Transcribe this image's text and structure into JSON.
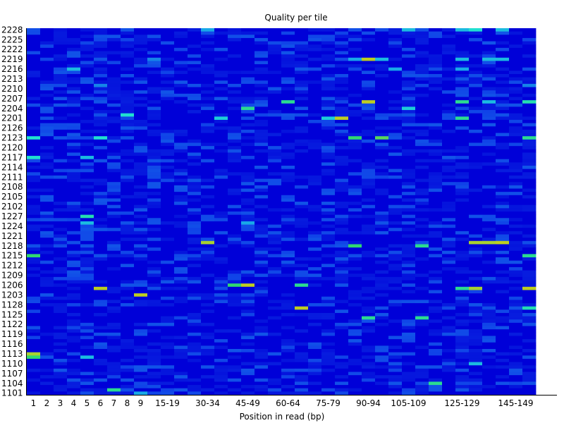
{
  "chart_data": {
    "type": "heatmap",
    "title": "Quality per tile",
    "xlabel": "Position in read (bp)",
    "ylabel": "",
    "x_tick_labels": [
      "1",
      "2",
      "3",
      "4",
      "5",
      "6",
      "7",
      "8",
      "9",
      "15-19",
      "30-34",
      "45-49",
      "60-64",
      "75-79",
      "90-94",
      "105-109",
      "125-129",
      "145-149"
    ],
    "y_tick_labels": [
      "2228",
      "2225",
      "2222",
      "2219",
      "2216",
      "2213",
      "2210",
      "2207",
      "2204",
      "2201",
      "2126",
      "2123",
      "2120",
      "2117",
      "2114",
      "2111",
      "2108",
      "2105",
      "2102",
      "1227",
      "1224",
      "1221",
      "1218",
      "1215",
      "1212",
      "1209",
      "1206",
      "1203",
      "1128",
      "1125",
      "1122",
      "1119",
      "1116",
      "1113",
      "1110",
      "1107",
      "1104",
      "1101"
    ],
    "rows": [
      "2228",
      "2227",
      "2226",
      "2225",
      "2224",
      "2223",
      "2222",
      "2221",
      "2220",
      "2219",
      "2218",
      "2217",
      "2216",
      "2215",
      "2214",
      "2213",
      "2212",
      "2211",
      "2210",
      "2209",
      "2208",
      "2207",
      "2206",
      "2205",
      "2204",
      "2203",
      "2202",
      "2201",
      "2128",
      "2127",
      "2126",
      "2125",
      "2124",
      "2123",
      "2122",
      "2121",
      "2120",
      "2119",
      "2118",
      "2117",
      "2116",
      "2115",
      "2114",
      "2113",
      "2112",
      "2111",
      "2110",
      "2109",
      "2108",
      "2107",
      "2106",
      "2105",
      "2104",
      "2103",
      "2102",
      "2101",
      "1228",
      "1227",
      "1226",
      "1225",
      "1224",
      "1223",
      "1222",
      "1221",
      "1220",
      "1219",
      "1218",
      "1217",
      "1216",
      "1215",
      "1214",
      "1213",
      "1212",
      "1211",
      "1210",
      "1209",
      "1208",
      "1207",
      "1206",
      "1205",
      "1204",
      "1203",
      "1202",
      "1201",
      "1128",
      "1127",
      "1126",
      "1125",
      "1124",
      "1123",
      "1122",
      "1121",
      "1120",
      "1119",
      "1118",
      "1117",
      "1116",
      "1115",
      "1114",
      "1113",
      "1112",
      "1111",
      "1110",
      "1109",
      "1108",
      "1107",
      "1106",
      "1105",
      "1104",
      "1103",
      "1102",
      "1101"
    ],
    "columns": [
      "1",
      "2",
      "3",
      "4",
      "5",
      "6",
      "7",
      "8",
      "9",
      "10-14",
      "15-19",
      "20-24",
      "25-29",
      "30-34",
      "35-39",
      "40-44",
      "45-49",
      "50-54",
      "55-59",
      "60-64",
      "65-69",
      "70-74",
      "75-79",
      "80-84",
      "85-89",
      "90-94",
      "95-99",
      "100-104",
      "105-109",
      "110-114",
      "115-119",
      "120-124",
      "125-129",
      "130-134",
      "135-139",
      "140-144",
      "145-149",
      "150"
    ],
    "value_scale": "0 = no deviation from average quality (dark blue); higher = larger deviation (cyan, green, yellow)",
    "highlights": [
      {
        "row": "2228",
        "column": "30-34",
        "value": 0.3
      },
      {
        "row": "2228",
        "column": "105-109",
        "value": 0.35
      },
      {
        "row": "2228",
        "column": "125-129",
        "value": 0.35
      },
      {
        "row": "2228",
        "column": "130-134",
        "value": 0.45
      },
      {
        "row": "2228",
        "column": "140-144",
        "value": 0.35
      },
      {
        "row": "2219",
        "column": "10-14",
        "value": 0.25
      },
      {
        "row": "2219",
        "column": "85-89",
        "value": 0.3
      },
      {
        "row": "2219",
        "column": "90-94",
        "value": 0.8
      },
      {
        "row": "2219",
        "column": "95-99",
        "value": 0.35
      },
      {
        "row": "2219",
        "column": "125-129",
        "value": 0.35
      },
      {
        "row": "2219",
        "column": "135-139",
        "value": 0.35
      },
      {
        "row": "2219",
        "column": "140-144",
        "value": 0.35
      },
      {
        "row": "2216",
        "column": "4",
        "value": 0.35
      },
      {
        "row": "2216",
        "column": "100-104",
        "value": 0.3
      },
      {
        "row": "2216",
        "column": "125-129",
        "value": 0.3
      },
      {
        "row": "2211",
        "column": "6",
        "value": 0.25
      },
      {
        "row": "2211",
        "column": "150",
        "value": 0.25
      },
      {
        "row": "2206",
        "column": "60-64",
        "value": 0.55
      },
      {
        "row": "2206",
        "column": "90-94",
        "value": 0.8
      },
      {
        "row": "2206",
        "column": "125-129",
        "value": 0.55
      },
      {
        "row": "2206",
        "column": "135-139",
        "value": 0.35
      },
      {
        "row": "2206",
        "column": "150",
        "value": 0.5
      },
      {
        "row": "2204",
        "column": "45-49",
        "value": 0.55
      },
      {
        "row": "2204",
        "column": "105-109",
        "value": 0.4
      },
      {
        "row": "2202",
        "column": "8",
        "value": 0.45
      },
      {
        "row": "2201",
        "column": "35-39",
        "value": 0.4
      },
      {
        "row": "2201",
        "column": "75-79",
        "value": 0.4
      },
      {
        "row": "2201",
        "column": "80-84",
        "value": 0.8
      },
      {
        "row": "2201",
        "column": "125-129",
        "value": 0.55
      },
      {
        "row": "2123",
        "column": "1",
        "value": 0.45
      },
      {
        "row": "2123",
        "column": "6",
        "value": 0.45
      },
      {
        "row": "2123",
        "column": "85-89",
        "value": 0.6
      },
      {
        "row": "2123",
        "column": "95-99",
        "value": 0.65
      },
      {
        "row": "2123",
        "column": "150",
        "value": 0.55
      },
      {
        "row": "2117",
        "column": "1",
        "value": 0.45
      },
      {
        "row": "2117",
        "column": "5",
        "value": 0.35
      },
      {
        "row": "1227",
        "column": "5",
        "value": 0.5
      },
      {
        "row": "1225",
        "column": "5",
        "value": 0.35
      },
      {
        "row": "1225",
        "column": "45-49",
        "value": 0.3
      },
      {
        "row": "1219",
        "column": "30-34",
        "value": 0.75
      },
      {
        "row": "1219",
        "column": "130-134",
        "value": 0.75
      },
      {
        "row": "1219",
        "column": "135-139",
        "value": 0.75
      },
      {
        "row": "1219",
        "column": "140-144",
        "value": 0.8
      },
      {
        "row": "1218",
        "column": "85-89",
        "value": 0.6
      },
      {
        "row": "1218",
        "column": "110-114",
        "value": 0.55
      },
      {
        "row": "1215",
        "column": "1",
        "value": 0.6
      },
      {
        "row": "1215",
        "column": "150",
        "value": 0.55
      },
      {
        "row": "1206",
        "column": "40-44",
        "value": 0.6
      },
      {
        "row": "1206",
        "column": "45-49",
        "value": 0.8
      },
      {
        "row": "1206",
        "column": "65-69",
        "value": 0.55
      },
      {
        "row": "1205",
        "column": "6",
        "value": 0.8
      },
      {
        "row": "1205",
        "column": "125-129",
        "value": 0.55
      },
      {
        "row": "1205",
        "column": "130-134",
        "value": 0.75
      },
      {
        "row": "1205",
        "column": "150",
        "value": 0.8
      },
      {
        "row": "1203",
        "column": "9",
        "value": 0.8
      },
      {
        "row": "1127",
        "column": "65-69",
        "value": 0.8
      },
      {
        "row": "1127",
        "column": "150",
        "value": 0.5
      },
      {
        "row": "1124",
        "column": "90-94",
        "value": 0.55
      },
      {
        "row": "1124",
        "column": "110-114",
        "value": 0.55
      },
      {
        "row": "1113",
        "column": "1",
        "value": 0.75
      },
      {
        "row": "1112",
        "column": "1",
        "value": 0.6
      },
      {
        "row": "1112",
        "column": "5",
        "value": 0.35
      },
      {
        "row": "1110",
        "column": "130-134",
        "value": 0.35
      },
      {
        "row": "1104",
        "column": "115-119",
        "value": 0.55
      },
      {
        "row": "1102",
        "column": "7",
        "value": 0.55
      },
      {
        "row": "1101",
        "column": "9",
        "value": 0.3
      }
    ],
    "color_stops": [
      {
        "value": 0.0,
        "color": "#0000d8"
      },
      {
        "value": 0.15,
        "color": "#1040e8"
      },
      {
        "value": 0.3,
        "color": "#18a8e8"
      },
      {
        "value": 0.45,
        "color": "#20e0d0"
      },
      {
        "value": 0.6,
        "color": "#30d870"
      },
      {
        "value": 0.75,
        "color": "#a8d030"
      },
      {
        "value": 0.9,
        "color": "#e8c800"
      }
    ],
    "grid": false,
    "legend": "none"
  }
}
